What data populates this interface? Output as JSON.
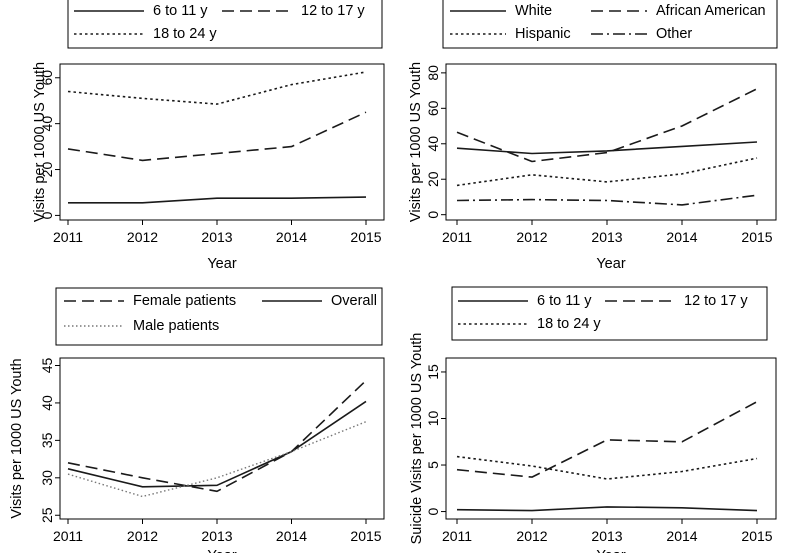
{
  "chart_data": [
    {
      "type": "line",
      "x": [
        2011,
        2012,
        2013,
        2014,
        2015
      ],
      "xlabel": "Year",
      "ylabel": "Visits per 1000 US Youth",
      "ylim": [
        -2,
        66
      ],
      "yticks": [
        0,
        20,
        40,
        60
      ],
      "grid": false,
      "legend_position": "top",
      "series": [
        {
          "name": "6 to 11 y",
          "style": "solid",
          "values": [
            5.5,
            5.5,
            7.5,
            7.5,
            8.0
          ]
        },
        {
          "name": "12 to 17 y",
          "style": "dash",
          "values": [
            29,
            24,
            27,
            30,
            45
          ]
        },
        {
          "name": "18 to 24 y",
          "style": "dot",
          "values": [
            54,
            51,
            48.5,
            57,
            62.5
          ]
        }
      ]
    },
    {
      "type": "line",
      "x": [
        2011,
        2012,
        2013,
        2014,
        2015
      ],
      "xlabel": "Year",
      "ylabel": "Visits per 1000 US Youth",
      "ylim": [
        -3,
        85
      ],
      "yticks": [
        0,
        20,
        40,
        60,
        80
      ],
      "grid": false,
      "legend_position": "top",
      "series": [
        {
          "name": "White",
          "style": "solid",
          "values": [
            37.5,
            34.5,
            36,
            38.5,
            41
          ]
        },
        {
          "name": "African American",
          "style": "dash",
          "values": [
            46.5,
            30,
            35,
            50,
            71
          ]
        },
        {
          "name": "Hispanic",
          "style": "dot",
          "values": [
            16.5,
            22.5,
            18.5,
            23,
            32
          ]
        },
        {
          "name": "Other",
          "style": "dashdot",
          "values": [
            8,
            8.5,
            8,
            5.5,
            11
          ]
        }
      ]
    },
    {
      "type": "line",
      "x": [
        2011,
        2012,
        2013,
        2014,
        2015
      ],
      "xlabel": "Year",
      "ylabel": "Visits per 1000 US Youth",
      "ylim": [
        24.5,
        46
      ],
      "yticks": [
        25,
        30,
        35,
        40,
        45
      ],
      "grid": false,
      "legend_position": "top",
      "series": [
        {
          "name": "Female patients",
          "style": "dash",
          "values": [
            32,
            30,
            28.2,
            33.5,
            43
          ]
        },
        {
          "name": "Overall",
          "style": "solid",
          "values": [
            31.2,
            28.8,
            29,
            33.5,
            40.2
          ]
        },
        {
          "name": "Male patients",
          "style": "lightdot",
          "values": [
            30.5,
            27.5,
            30,
            33.5,
            37.5
          ]
        }
      ]
    },
    {
      "type": "line",
      "x": [
        2011,
        2012,
        2013,
        2014,
        2015
      ],
      "xlabel": "Year",
      "ylabel": "Suicide Visits per 1000 US Youth",
      "ylim": [
        -0.8,
        16.5
      ],
      "yticks": [
        0,
        5,
        10,
        15
      ],
      "grid": false,
      "legend_position": "top",
      "series": [
        {
          "name": "6 to 11 y",
          "style": "solid",
          "values": [
            0.2,
            0.1,
            0.5,
            0.4,
            0.1
          ]
        },
        {
          "name": "12 to 17 y",
          "style": "dash",
          "values": [
            4.5,
            3.7,
            7.7,
            7.5,
            11.8
          ]
        },
        {
          "name": "18 to 24 y",
          "style": "dot",
          "values": [
            5.9,
            4.9,
            3.5,
            4.3,
            5.7
          ]
        }
      ]
    }
  ]
}
